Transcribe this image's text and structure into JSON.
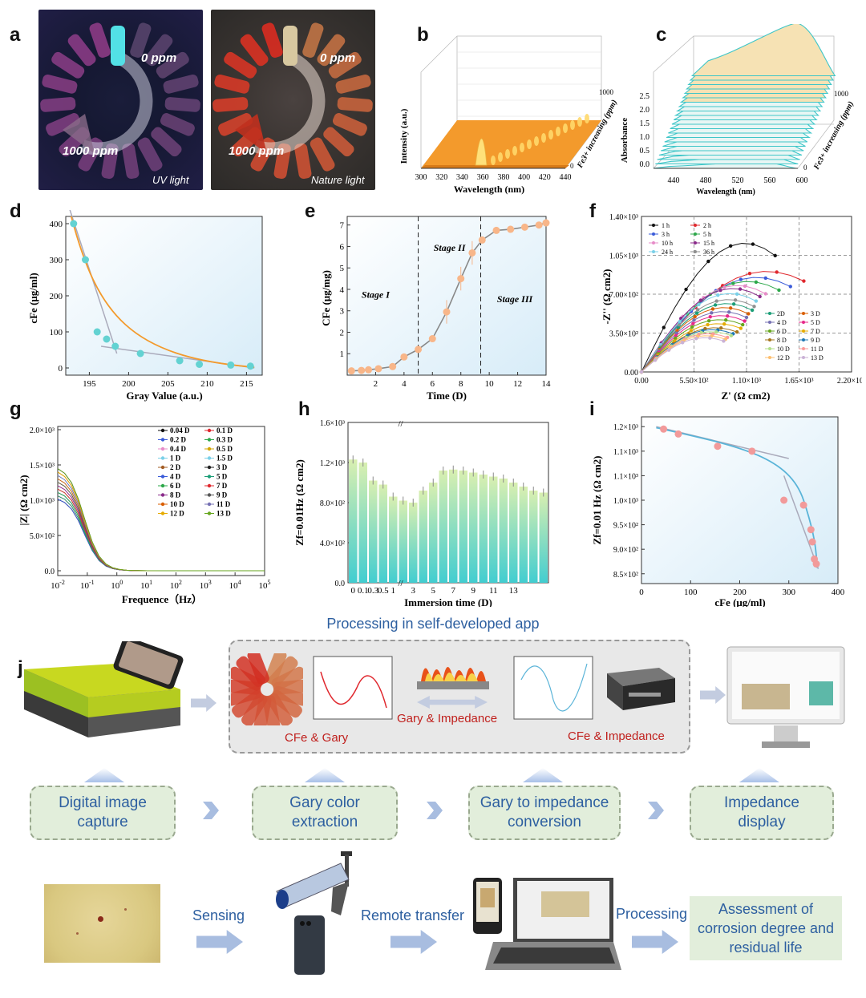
{
  "panels": {
    "a": "a",
    "b": "b",
    "c": "c",
    "d": "d",
    "e": "e",
    "f": "f",
    "g": "g",
    "h": "h",
    "i": "i",
    "j": "j"
  },
  "photo_a_uv": {
    "zero": "0 ppm",
    "max": "1000 ppm",
    "light": "UV light"
  },
  "photo_a_nat": {
    "zero": "0 ppm",
    "max": "1000 ppm",
    "light": "Nature light"
  },
  "colors": {
    "orange": "#f39a2c",
    "teal": "#3fc6c8",
    "pink": "#f29a9a",
    "blue_text": "#2d5fa0",
    "red_text": "#c0201d",
    "step_bg": "#e2eedb",
    "grey_arrow": "#c3cce0"
  },
  "chart_data": [
    {
      "id": "b",
      "type": "3d-line",
      "title": "",
      "xlabel": "Wavelength (nm)",
      "ylabel": "Intensity (a.u.)",
      "zlabel": "Fe3+ increasing (ppm)",
      "x_ticks": [
        "300",
        "320",
        "340",
        "360",
        "380",
        "400",
        "420",
        "440"
      ],
      "z_ticks": [
        "0",
        "1000"
      ],
      "peak_wavelength": 360
    },
    {
      "id": "c",
      "type": "3d-line",
      "xlabel": "Wavelength (nm)",
      "ylabel": "Absorbance",
      "zlabel": "Fe3+ increasing (ppm)",
      "x_ticks": [
        "440",
        "480",
        "520",
        "560",
        "600"
      ],
      "y_ticks": [
        "0.0",
        "0.5",
        "1.0",
        "1.5",
        "2.0",
        "2.5"
      ],
      "z_ticks": [
        "0",
        "1000"
      ]
    },
    {
      "id": "d",
      "type": "scatter",
      "xlabel": "Gray Value (a.u.)",
      "ylabel": "cFe (μg/ml)",
      "x_ticks": [
        "195",
        "200",
        "205",
        "210",
        "215"
      ],
      "y_ticks": [
        "0",
        "100",
        "200",
        "300",
        "400"
      ],
      "xlim": [
        192,
        217
      ],
      "ylim": [
        -20,
        420
      ],
      "points": [
        [
          193,
          400
        ],
        [
          194.5,
          300
        ],
        [
          196,
          100
        ],
        [
          197.2,
          80
        ],
        [
          198.3,
          60
        ],
        [
          201.5,
          40
        ],
        [
          206.5,
          20
        ],
        [
          209,
          10
        ],
        [
          213,
          8
        ],
        [
          215.5,
          5
        ]
      ]
    },
    {
      "id": "e",
      "type": "line",
      "xlabel": "Time (D)",
      "ylabel": "CFe (μg/mg)",
      "x_ticks": [
        "2",
        "4",
        "6",
        "8",
        "10",
        "12",
        "14"
      ],
      "y_ticks": [
        "1",
        "2",
        "3",
        "4",
        "5",
        "6",
        "7"
      ],
      "xlim": [
        0,
        14
      ],
      "ylim": [
        0,
        7.4
      ],
      "stages": [
        "Stage I",
        "Stage II",
        "Stage III"
      ],
      "points": [
        [
          0.3,
          0.2
        ],
        [
          1,
          0.22
        ],
        [
          1.5,
          0.25
        ],
        [
          2.2,
          0.3
        ],
        [
          3.2,
          0.4
        ],
        [
          4,
          0.85
        ],
        [
          5,
          1.2
        ],
        [
          6,
          1.7
        ],
        [
          7,
          2.95
        ],
        [
          8,
          4.5
        ],
        [
          8.8,
          5.7
        ],
        [
          9.5,
          6.3
        ],
        [
          10.5,
          6.75
        ],
        [
          11.5,
          6.8
        ],
        [
          12.5,
          6.9
        ],
        [
          13.5,
          7.0
        ],
        [
          14,
          7.1
        ]
      ]
    },
    {
      "id": "f",
      "type": "scatter-line",
      "xlabel": "Z' (Ω cm2)",
      "ylabel": "-Z'' (Ω cm2)",
      "x_ticks": [
        "0.00",
        "5.50×10²",
        "1.10×10³",
        "1.65×10³",
        "2.20×10³"
      ],
      "y_ticks": [
        "0.00",
        "3.50×10²",
        "7.00×10²",
        "1.05×10³",
        "1.40×10³"
      ],
      "legend_hours": [
        "1 h",
        "2 h",
        "3 h",
        "5 h",
        "10 h",
        "15 h",
        "24 h",
        "36 h"
      ],
      "legend_days": [
        "2D",
        "3 D",
        "4 D",
        "5 D",
        "6 D",
        "7 D",
        "8 D",
        "9 D",
        "10 D",
        "11 D",
        "12 D",
        "13 D"
      ]
    },
    {
      "id": "g",
      "type": "line",
      "xlabel": "Frequence（Hz）",
      "ylabel": "|Z| (Ω cm2)",
      "x_ticks": [
        "10-2",
        "10-1",
        "10^0",
        "10^1",
        "10^2",
        "10^3",
        "10^4",
        "10^5"
      ],
      "y_ticks": [
        "0.0",
        "5.0×10²",
        "1.0×10³",
        "1.5×10³",
        "2.0×10³"
      ],
      "legend": [
        "0.04 D",
        "0.1 D",
        "0.2 D",
        "0.3 D",
        "0.4 D",
        "0.5 D",
        "1 D",
        "1.5 D",
        "2 D",
        "3 D",
        "4 D",
        "5 D",
        "6 D",
        "7 D",
        "8 D",
        "9 D",
        "10 D",
        "11 D",
        "12 D",
        "13 D"
      ]
    },
    {
      "id": "h",
      "type": "bar",
      "xlabel": "Immersion time (D)",
      "ylabel": "Zf=0.01Hz (Ω cm2)",
      "x_ticks": [
        "0",
        "0.1",
        "0.3",
        "0.5",
        "1",
        "3",
        "5",
        "7",
        "9",
        "11",
        "13"
      ],
      "y_ticks": [
        "0.0",
        "4.0×10²",
        "8.0×10²",
        "1.2×10³",
        "1.6×10³"
      ],
      "ylim": [
        0,
        1600
      ],
      "values": [
        1230,
        1200,
        1020,
        980,
        860,
        820,
        800,
        920,
        1000,
        1120,
        1130,
        1120,
        1100,
        1080,
        1060,
        1040,
        1000,
        960,
        920,
        900
      ]
    },
    {
      "id": "i",
      "type": "scatter",
      "xlabel": "cFe (μg/ml)",
      "ylabel": "Zf=0.01 Hz (Ω cm2)",
      "x_ticks": [
        "0",
        "100",
        "200",
        "300",
        "400"
      ],
      "y_ticks": [
        "8.5×10²",
        "9.0×10²",
        "9.5×10²",
        "1.0×10³",
        "1.1×10³",
        "1.1×10³",
        "1.2×10³"
      ],
      "points": [
        [
          45,
          1145
        ],
        [
          75,
          1135
        ],
        [
          155,
          1110
        ],
        [
          225,
          1100
        ],
        [
          290,
          1000
        ],
        [
          330,
          990
        ],
        [
          345,
          940
        ],
        [
          348,
          915
        ],
        [
          352,
          880
        ],
        [
          356,
          870
        ]
      ]
    }
  ],
  "j": {
    "app_title": "Processing in self-developed app",
    "mid_label_1": "CFe & Gary",
    "mid_label_2": "Gary & Impedance",
    "mid_label_3": "CFe & Impedance",
    "steps": [
      "Digital image capture",
      "Gary color extraction",
      "Gary to impedance conversion",
      "Impedance display"
    ],
    "bottom": {
      "sensing": "Sensing",
      "remote": "Remote transfer",
      "processing": "Processing",
      "result": "Assessment of corrosion degree and residual life"
    }
  }
}
